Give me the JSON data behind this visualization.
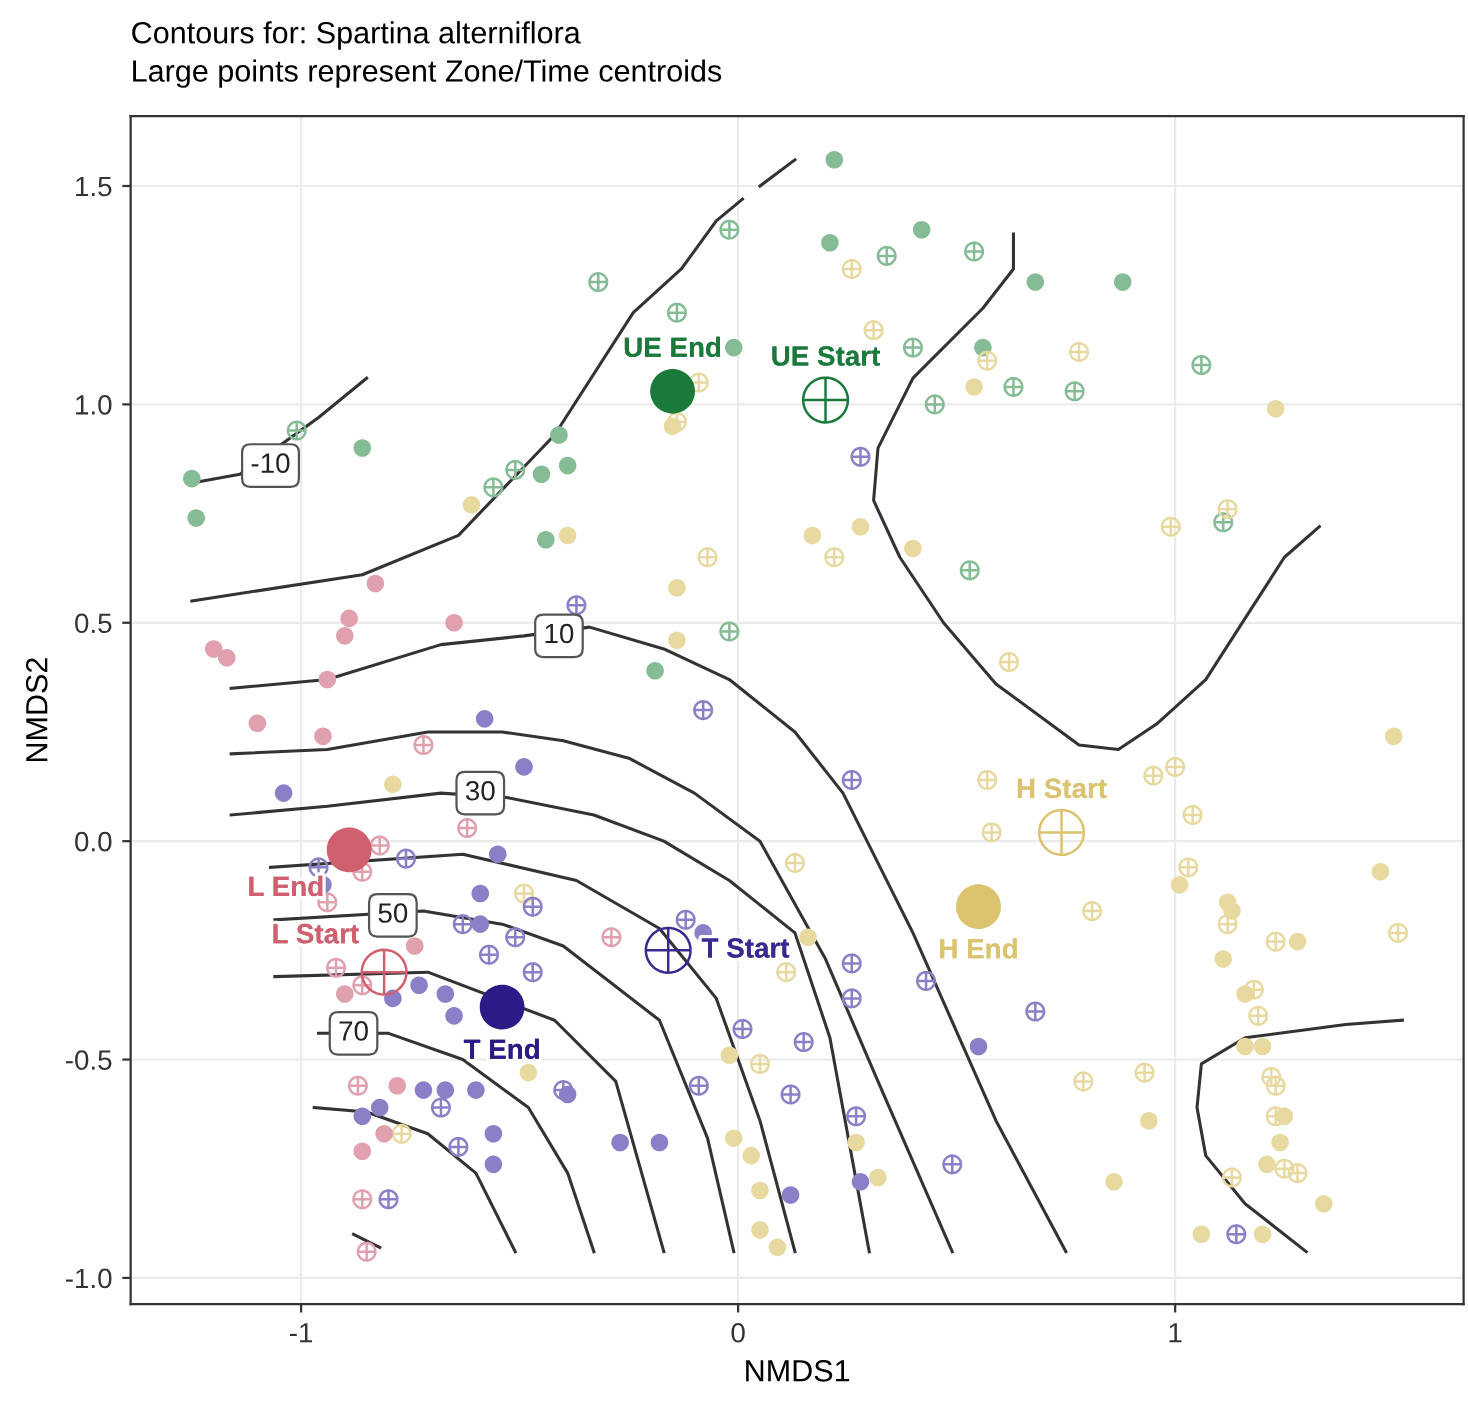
{
  "chart_data": {
    "type": "scatter",
    "title": "Contours for: Spartina alterniflora",
    "subtitle": "Large points represent Zone/Time centroids",
    "xlabel": "NMDS1",
    "ylabel": "NMDS2",
    "xlim": [
      -1.39,
      1.66
    ],
    "ylim": [
      -1.06,
      1.66
    ],
    "xticks": [
      -1,
      0,
      1
    ],
    "yticks": [
      {
        "value": -1,
        "label": "-1.0"
      },
      -0.5,
      {
        "value": 0,
        "label": "0.0"
      },
      0.5,
      {
        "value": 1,
        "label": "1.0"
      },
      1.5
    ],
    "grid": true,
    "series": [
      {
        "type": "line",
        "color": "#333333",
        "x": [
          -1.25,
          -1.14,
          -0.96,
          -0.85
        ],
        "values": [
          0.82,
          0.84,
          0.97,
          1.06
        ]
      },
      {
        "type": "line",
        "color": "#333333",
        "x": [
          -1.25,
          -0.86,
          -0.64,
          -0.42,
          -0.24,
          -0.13,
          -0.05,
          0.01,
          0.03,
          0.05,
          0.13
        ],
        "values": [
          0.55,
          0.61,
          0.7,
          0.93,
          1.21,
          1.31,
          1.42,
          1.47,
          null,
          1.5,
          1.56
        ]
      },
      {
        "type": "line",
        "color": "#333333",
        "x": [
          -1.16,
          -0.94,
          -0.68,
          -0.49,
          -0.34,
          -0.17,
          -0.02,
          0.13,
          0.24,
          0.4,
          0.59,
          0.75
        ],
        "values": [
          0.35,
          0.37,
          0.45,
          0.47,
          0.49,
          0.44,
          0.37,
          0.25,
          0.11,
          -0.21,
          -0.64,
          -0.94
        ]
      },
      {
        "type": "line",
        "color": "#333333",
        "x": [
          -1.16,
          -0.94,
          -0.71,
          -0.54,
          -0.4,
          -0.25,
          -0.1,
          0.05,
          0.2,
          0.32,
          0.49
        ],
        "values": [
          0.2,
          0.21,
          0.25,
          0.25,
          0.23,
          0.19,
          0.11,
          0.0,
          -0.27,
          -0.55,
          -0.94
        ]
      },
      {
        "type": "line",
        "color": "#333333",
        "x": [
          -1.16,
          -0.94,
          -0.68,
          -0.53,
          -0.33,
          -0.17,
          -0.02,
          0.13,
          0.21,
          0.3
        ],
        "values": [
          0.06,
          0.08,
          0.11,
          0.1,
          0.06,
          0.0,
          -0.09,
          -0.21,
          -0.45,
          -0.94
        ]
      },
      {
        "type": "line",
        "color": "#333333",
        "x": [
          -1.07,
          -0.63,
          -0.37,
          -0.18,
          -0.05,
          0.05,
          0.13
        ],
        "values": [
          -0.06,
          -0.03,
          -0.09,
          -0.2,
          -0.36,
          -0.64,
          -0.94
        ]
      },
      {
        "type": "line",
        "color": "#333333",
        "x": [
          -1.06,
          -0.72,
          -0.54,
          -0.4,
          -0.18,
          -0.07,
          -0.01
        ],
        "values": [
          -0.18,
          -0.16,
          -0.19,
          -0.24,
          -0.41,
          -0.68,
          -0.94
        ]
      },
      {
        "type": "line",
        "color": "#333333",
        "x": [
          -1.06,
          -0.71,
          -0.42,
          -0.28,
          -0.17
        ],
        "values": [
          -0.31,
          -0.3,
          -0.41,
          -0.55,
          -0.94
        ]
      },
      {
        "type": "line",
        "color": "#333333",
        "x": [
          -0.96,
          -0.8,
          -0.63,
          -0.48,
          -0.39,
          -0.33
        ],
        "values": [
          -0.44,
          -0.44,
          -0.5,
          -0.61,
          -0.76,
          -0.94
        ]
      },
      {
        "type": "line",
        "color": "#333333",
        "x": [
          -0.97,
          -0.85,
          -0.71,
          -0.6,
          -0.51
        ],
        "values": [
          -0.61,
          -0.62,
          -0.67,
          -0.76,
          -0.94
        ]
      },
      {
        "type": "line",
        "color": "#333333",
        "x": [
          -0.88,
          -0.82
        ],
        "values": [
          -0.9,
          -0.93
        ]
      },
      {
        "type": "line",
        "color": "#333333",
        "x": [
          0.63,
          0.63,
          0.56,
          0.4,
          0.32,
          0.31,
          0.37,
          0.47,
          0.59,
          0.78,
          0.87,
          0.96,
          1.07,
          1.16,
          1.25,
          1.33
        ],
        "values": [
          1.39,
          1.31,
          1.22,
          1.06,
          0.9,
          0.78,
          0.65,
          0.5,
          0.36,
          0.22,
          0.21,
          0.27,
          0.37,
          0.51,
          0.65,
          0.72
        ]
      },
      {
        "type": "line",
        "color": "#333333",
        "x": [
          1.52,
          1.39,
          1.16,
          1.06,
          1.05,
          1.07,
          1.16,
          1.3
        ],
        "values": [
          -0.41,
          -0.42,
          -0.45,
          -0.51,
          -0.61,
          -0.72,
          -0.83,
          -0.94
        ]
      },
      {
        "marker": "circle",
        "color": "#85bb95",
        "x": [
          -1.25,
          -1.24,
          -0.86,
          -0.41,
          -0.39,
          -0.45,
          -0.44,
          -0.01,
          0.22,
          0.21,
          0.42,
          0.68,
          0.88,
          0.56,
          -0.19
        ],
        "values": [
          0.83,
          0.74,
          0.9,
          0.93,
          0.86,
          0.84,
          0.69,
          1.13,
          1.56,
          1.37,
          1.4,
          1.28,
          1.28,
          1.13,
          0.39
        ]
      },
      {
        "marker": "cross",
        "color": "#85bb95",
        "x": [
          -1.01,
          -0.32,
          -0.14,
          -0.02,
          -0.51,
          -0.56,
          0.34,
          0.54,
          0.4,
          0.63,
          0.77,
          0.45,
          1.06,
          1.11,
          0.53,
          -0.02
        ],
        "values": [
          0.94,
          1.28,
          1.21,
          1.4,
          0.85,
          0.81,
          1.34,
          1.35,
          1.13,
          1.04,
          1.03,
          1.0,
          1.09,
          0.73,
          0.62,
          0.48
        ]
      },
      {
        "marker": "circle",
        "color": "#e8d9a0",
        "x": [
          -0.15,
          -0.61,
          -0.39,
          0.54,
          1.23,
          0.17,
          0.28,
          0.4,
          -0.14,
          -0.14,
          -0.79,
          1.5,
          1.47,
          1.01,
          1.12,
          1.13,
          0.16,
          1.28,
          -0.48,
          -0.02,
          -0.01,
          0.03,
          0.05,
          0.05,
          0.09,
          1.11,
          1.16,
          1.16,
          1.2,
          0.94,
          1.25,
          1.24,
          1.21,
          0.27,
          0.32,
          0.86,
          1.34,
          1.06,
          1.2
        ],
        "values": [
          0.95,
          0.77,
          0.7,
          1.04,
          0.99,
          0.7,
          0.72,
          0.67,
          0.58,
          0.46,
          0.13,
          0.24,
          -0.07,
          -0.1,
          -0.14,
          -0.16,
          -0.22,
          -0.23,
          -0.53,
          -0.49,
          -0.68,
          -0.72,
          -0.8,
          -0.89,
          -0.93,
          -0.27,
          -0.35,
          -0.47,
          -0.47,
          -0.64,
          -0.63,
          -0.69,
          -0.74,
          -0.69,
          -0.77,
          -0.78,
          -0.83,
          -0.9,
          -0.9
        ]
      },
      {
        "marker": "cross",
        "color": "#e8d9a0",
        "x": [
          0.26,
          0.31,
          0.57,
          0.78,
          0.22,
          0.99,
          1.12,
          -0.09,
          -0.14,
          -0.07,
          0.62,
          0.57,
          0.95,
          1.0,
          1.04,
          0.58,
          0.13,
          1.03,
          0.81,
          1.12,
          1.23,
          1.51,
          0.11,
          0.79,
          0.93,
          1.18,
          1.19,
          1.22,
          1.23,
          1.23,
          1.28,
          1.25,
          1.13,
          -0.49,
          -0.77,
          0.05
        ],
        "values": [
          1.31,
          1.17,
          1.1,
          1.12,
          0.65,
          0.72,
          0.76,
          1.05,
          0.96,
          0.65,
          0.41,
          0.14,
          0.15,
          0.17,
          0.06,
          0.02,
          -0.05,
          -0.06,
          -0.16,
          -0.19,
          -0.23,
          -0.21,
          -0.3,
          -0.55,
          -0.53,
          -0.34,
          -0.4,
          -0.54,
          -0.56,
          -0.63,
          -0.76,
          -0.75,
          -0.77,
          -0.12,
          -0.67,
          -0.51
        ]
      },
      {
        "marker": "circle",
        "color": "#e0a0ae",
        "x": [
          -0.83,
          -0.89,
          -0.9,
          -0.65,
          -1.2,
          -1.17,
          -0.94,
          -1.1,
          -0.95,
          -0.74,
          -0.9,
          -0.78,
          -0.81,
          -0.86
        ],
        "values": [
          0.59,
          0.51,
          0.47,
          0.5,
          0.44,
          0.42,
          0.37,
          0.27,
          0.24,
          -0.24,
          -0.35,
          -0.56,
          -0.67,
          -0.71
        ]
      },
      {
        "marker": "cross",
        "color": "#e0a0ae",
        "x": [
          -0.72,
          -0.62,
          -0.82,
          -0.86,
          -0.94,
          -0.92,
          -0.86,
          -0.29,
          -0.87,
          -0.86,
          -0.85
        ],
        "values": [
          0.22,
          0.03,
          -0.01,
          -0.07,
          -0.14,
          -0.29,
          -0.33,
          -0.22,
          -0.56,
          -0.82,
          -0.94
        ]
      },
      {
        "marker": "circle",
        "color": "#8a80c8",
        "x": [
          -0.58,
          -0.49,
          -1.04,
          -0.55,
          -0.95,
          -0.59,
          -0.59,
          -0.08,
          -0.73,
          -0.67,
          -0.79,
          -0.65,
          -0.72,
          -0.67,
          -0.6,
          -0.82,
          -0.86,
          -0.56,
          -0.56,
          -0.39,
          -0.27,
          -0.18,
          0.12,
          0.55,
          0.28
        ],
        "values": [
          0.28,
          0.17,
          0.11,
          -0.03,
          -0.1,
          -0.12,
          -0.19,
          -0.21,
          -0.33,
          -0.35,
          -0.36,
          -0.4,
          -0.57,
          -0.57,
          -0.57,
          -0.61,
          -0.63,
          -0.67,
          -0.74,
          -0.58,
          -0.69,
          -0.69,
          -0.81,
          -0.47,
          -0.78
        ]
      },
      {
        "marker": "cross",
        "color": "#8a80c8",
        "x": [
          -0.37,
          -0.08,
          -0.96,
          -0.76,
          -0.47,
          -0.63,
          -0.51,
          -0.12,
          0.26,
          -0.57,
          -0.47,
          -0.68,
          -0.64,
          -0.8,
          -0.4,
          -0.09,
          0.01,
          0.12,
          0.15,
          0.26,
          0.43,
          0.26,
          0.68,
          0.27,
          0.49,
          1.14,
          0.28
        ],
        "values": [
          0.54,
          0.3,
          -0.06,
          -0.04,
          -0.15,
          -0.19,
          -0.22,
          -0.18,
          0.14,
          -0.26,
          -0.3,
          -0.61,
          -0.7,
          -0.82,
          -0.57,
          -0.56,
          -0.43,
          -0.58,
          -0.46,
          -0.28,
          -0.32,
          -0.36,
          -0.39,
          -0.63,
          -0.74,
          -0.9,
          0.88
        ]
      },
      {
        "type": "bubble",
        "name": "UE End",
        "marker": "circle",
        "color": "#1a7a3c",
        "x": [
          -0.15
        ],
        "values": [
          1.03
        ],
        "sizes": [
          1
        ]
      },
      {
        "type": "bubble",
        "name": "UE Start",
        "marker": "cross",
        "color": "#1a7a3c",
        "x": [
          0.2
        ],
        "values": [
          1.01
        ],
        "sizes": [
          1
        ]
      },
      {
        "type": "bubble",
        "name": "L End",
        "marker": "circle",
        "color": "#d06070",
        "x": [
          -0.89
        ],
        "values": [
          -0.02
        ],
        "sizes": [
          1
        ]
      },
      {
        "type": "bubble",
        "name": "L Start",
        "marker": "cross",
        "color": "#d06070",
        "x": [
          -0.81
        ],
        "values": [
          -0.3
        ],
        "sizes": [
          1
        ]
      },
      {
        "type": "bubble",
        "name": "T End",
        "marker": "circle",
        "color": "#2e1a87",
        "x": [
          -0.54
        ],
        "values": [
          -0.38
        ],
        "sizes": [
          1
        ]
      },
      {
        "type": "bubble",
        "name": "T Start",
        "marker": "cross",
        "color": "#3a2a90",
        "x": [
          -0.16
        ],
        "values": [
          -0.25
        ],
        "sizes": [
          1
        ]
      },
      {
        "type": "bubble",
        "name": "H End",
        "marker": "circle",
        "color": "#dcc370",
        "x": [
          0.55
        ],
        "values": [
          -0.15
        ],
        "sizes": [
          1
        ]
      },
      {
        "type": "bubble",
        "name": "H Start",
        "marker": "cross",
        "color": "#dcc370",
        "x": [
          0.74
        ],
        "values": [
          0.02
        ],
        "sizes": [
          1
        ]
      }
    ],
    "annotations": [
      {
        "text": "-10",
        "x": -1.07,
        "y": 0.86
      },
      {
        "text": "10",
        "x": -0.41,
        "y": 0.47
      },
      {
        "text": "30",
        "x": -0.59,
        "y": 0.11
      },
      {
        "text": "50",
        "x": -0.79,
        "y": -0.17
      },
      {
        "text": "70",
        "x": -0.88,
        "y": -0.44
      }
    ]
  }
}
